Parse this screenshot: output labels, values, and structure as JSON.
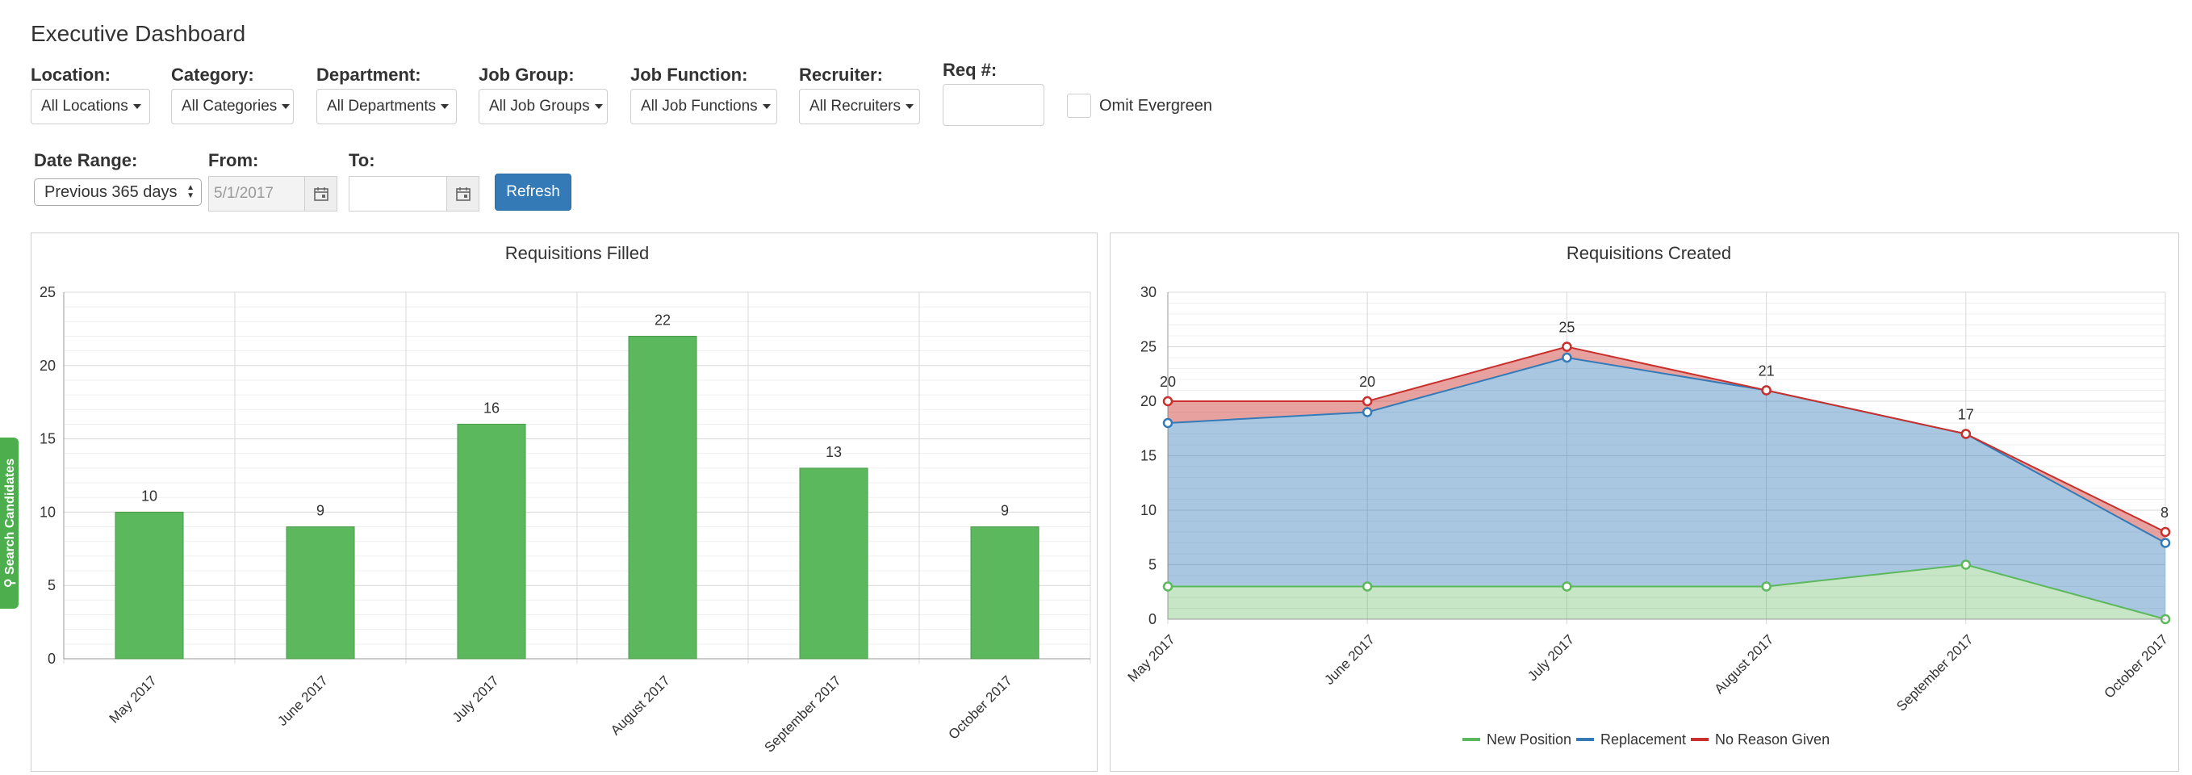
{
  "page": {
    "title": "Executive Dashboard"
  },
  "filters": {
    "location": {
      "label": "Location:",
      "value": "All Locations"
    },
    "category": {
      "label": "Category:",
      "value": "All Categories"
    },
    "department": {
      "label": "Department:",
      "value": "All Departments"
    },
    "job_group": {
      "label": "Job Group:",
      "value": "All Job Groups"
    },
    "job_function": {
      "label": "Job Function:",
      "value": "All Job Functions"
    },
    "recruiter": {
      "label": "Recruiter:",
      "value": "All Recruiters"
    },
    "req": {
      "label": "Req #:",
      "value": ""
    },
    "omit_evergreen": {
      "label": "Omit Evergreen",
      "checked": false
    },
    "date_range": {
      "label": "Date Range:",
      "value": "Previous 365 days"
    },
    "from": {
      "label": "From:",
      "value": "",
      "placeholder": "5/1/2017"
    },
    "to": {
      "label": "To:",
      "value": ""
    },
    "refresh_label": "Refresh"
  },
  "side_tab": {
    "label": "Search Candidates"
  },
  "colors": {
    "bar": "#5cb85c",
    "new_position": "#5cb85c",
    "replacement": "#337ab7",
    "no_reason": "#c9302c"
  },
  "chart_data": [
    {
      "type": "bar",
      "title": "Requisitions Filled",
      "categories": [
        "May 2017",
        "June 2017",
        "July 2017",
        "August 2017",
        "September 2017",
        "October 2017"
      ],
      "values": [
        10,
        9,
        16,
        22,
        13,
        9
      ],
      "ylim": [
        0,
        25
      ],
      "yticks": [
        0,
        5,
        10,
        15,
        20,
        25
      ],
      "xlabel": "",
      "ylabel": "",
      "grid": true
    },
    {
      "type": "area",
      "title": "Requisitions Created",
      "stacked": true,
      "categories": [
        "May 2017",
        "June 2017",
        "July 2017",
        "August 2017",
        "September 2017",
        "October 2017"
      ],
      "series": [
        {
          "name": "New Position",
          "values": [
            3,
            3,
            3,
            3,
            5,
            0
          ]
        },
        {
          "name": "Replacement",
          "values": [
            15,
            16,
            21,
            18,
            12,
            7
          ]
        },
        {
          "name": "No Reason Given",
          "values": [
            2,
            1,
            1,
            0,
            0,
            1
          ]
        }
      ],
      "totals": [
        20,
        20,
        25,
        21,
        17,
        8
      ],
      "ylim": [
        0,
        30
      ],
      "yticks": [
        0,
        5,
        10,
        15,
        20,
        25,
        30
      ],
      "legend": "bottom",
      "grid": true
    }
  ]
}
